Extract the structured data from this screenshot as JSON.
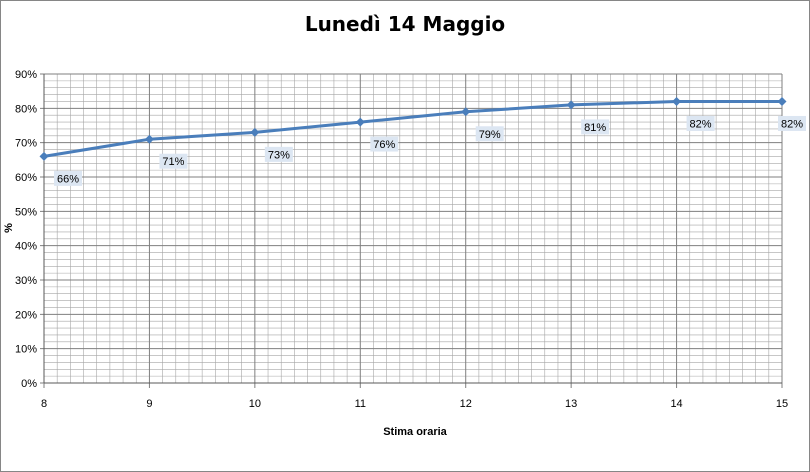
{
  "chart_data": {
    "type": "line",
    "title": "Lunedì 14 Maggio",
    "xlabel": "Stima oraria",
    "ylabel": "%",
    "x": [
      8,
      9,
      10,
      11,
      12,
      13,
      14,
      15
    ],
    "series": [
      {
        "values": [
          66,
          71,
          73,
          76,
          79,
          81,
          82,
          82
        ]
      }
    ],
    "data_labels": [
      "66%",
      "71%",
      "73%",
      "76%",
      "79%",
      "81%",
      "82%",
      "82%"
    ],
    "ylim": [
      0,
      90
    ],
    "xlim": [
      8,
      15
    ],
    "yticks": [
      "0%",
      "10%",
      "20%",
      "30%",
      "40%",
      "50%",
      "60%",
      "70%",
      "80%",
      "90%"
    ],
    "xticks": [
      "8",
      "9",
      "10",
      "11",
      "12",
      "13",
      "14",
      "15"
    ],
    "grid": true,
    "legend": "none",
    "colors": {
      "line": "#4a7ebb",
      "grid": "#7f7f7f",
      "label_bg": "#dce6f2"
    }
  }
}
